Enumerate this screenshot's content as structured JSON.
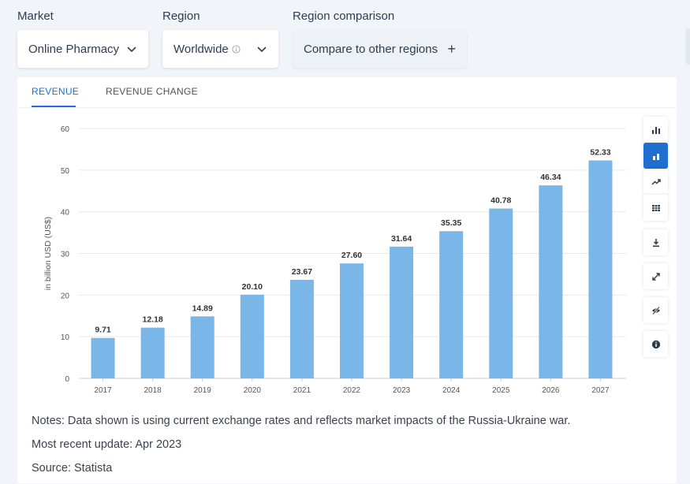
{
  "filters": {
    "market": {
      "label": "Market",
      "value": "Online Pharmacy"
    },
    "region": {
      "label": "Region",
      "value": "Worldwide"
    },
    "comparison": {
      "label": "Region comparison",
      "value": "Compare to other regions"
    }
  },
  "tabs": [
    {
      "label": "REVENUE",
      "active": true
    },
    {
      "label": "REVENUE CHANGE",
      "active": false
    }
  ],
  "chart_data": {
    "type": "bar",
    "categories": [
      "2017",
      "2018",
      "2019",
      "2020",
      "2021",
      "2022",
      "2023",
      "2024",
      "2025",
      "2026",
      "2027"
    ],
    "values": [
      9.71,
      12.18,
      14.89,
      20.1,
      23.67,
      27.6,
      31.64,
      35.35,
      40.78,
      46.34,
      52.33
    ],
    "value_labels": [
      "9.71",
      "12.18",
      "14.89",
      "20.10",
      "23.67",
      "27.60",
      "31.64",
      "35.35",
      "40.78",
      "46.34",
      "52.33"
    ],
    "ylabel": "in billion USD (US$)",
    "ylim": [
      0,
      60
    ],
    "yticks": [
      0,
      10,
      20,
      30,
      40,
      50,
      60
    ],
    "grid": true,
    "bar_color": "#7ab7e8"
  },
  "notes": [
    "Notes: Data shown is using current exchange rates and reflects market impacts of the Russia-Ukraine war.",
    "Most recent update: Apr 2023",
    "Source: Statista"
  ],
  "tools": [
    {
      "icon": "bar-chart-icon",
      "active": false
    },
    {
      "icon": "stacked-bar-icon",
      "active": true
    },
    {
      "icon": "trend-line-icon",
      "active": false
    },
    {
      "icon": "table-grid-icon",
      "active": false
    },
    {
      "icon": "download-icon",
      "active": false
    },
    {
      "icon": "expand-icon",
      "active": false
    },
    {
      "icon": "hide-icon",
      "active": false
    },
    {
      "icon": "info-icon",
      "active": false
    }
  ],
  "colors": {
    "accent": "#1f6fd1",
    "bar": "#7ab7e8",
    "text": "#2c3e50"
  }
}
